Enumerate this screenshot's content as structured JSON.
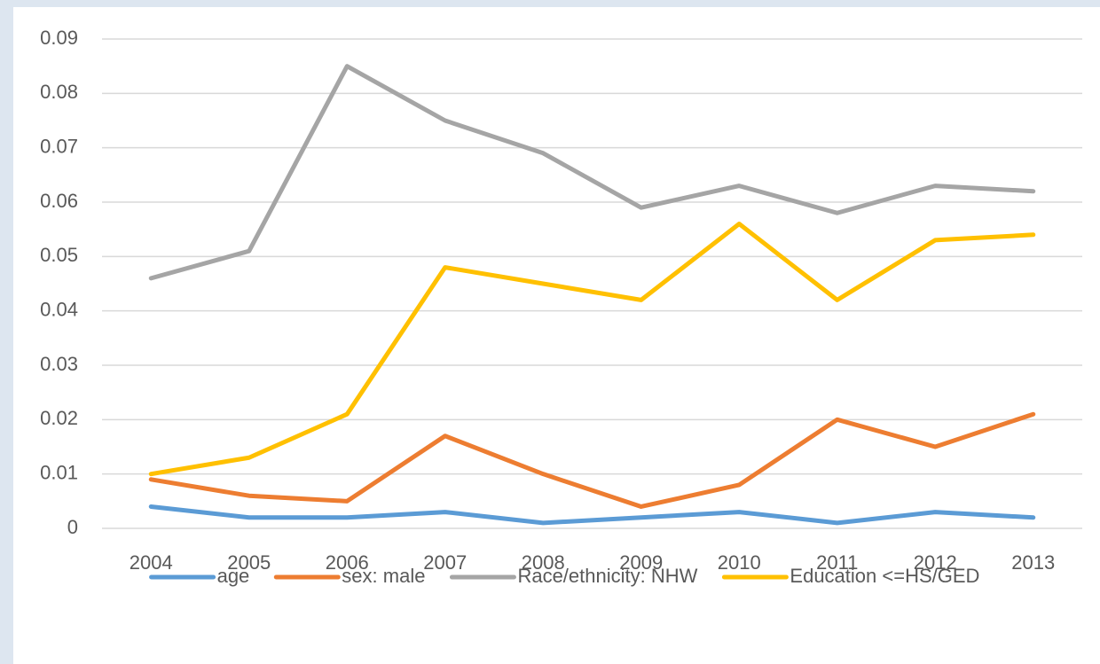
{
  "chart_data": {
    "type": "line",
    "categories": [
      "2004",
      "2005",
      "2006",
      "2007",
      "2008",
      "2009",
      "2010",
      "2011",
      "2012",
      "2013"
    ],
    "series": [
      {
        "name": "age",
        "color": "#5b9bd5",
        "values": [
          0.004,
          0.002,
          0.002,
          0.003,
          0.001,
          0.002,
          0.003,
          0.001,
          0.003,
          0.002
        ]
      },
      {
        "name": "sex: male",
        "color": "#ed7d31",
        "values": [
          0.009,
          0.006,
          0.005,
          0.017,
          0.01,
          0.004,
          0.008,
          0.02,
          0.015,
          0.021
        ]
      },
      {
        "name": "Race/ethnicity: NHW",
        "color": "#a5a5a5",
        "values": [
          0.046,
          0.051,
          0.085,
          0.075,
          0.069,
          0.059,
          0.063,
          0.058,
          0.063,
          0.062
        ]
      },
      {
        "name": "Education <=HS/GED",
        "color": "#ffc000",
        "values": [
          0.01,
          0.013,
          0.021,
          0.048,
          0.045,
          0.042,
          0.056,
          0.042,
          0.053,
          0.054
        ]
      }
    ],
    "ylim": [
      0,
      0.09
    ],
    "yticks": [
      0,
      0.01,
      0.02,
      0.03,
      0.04,
      0.05,
      0.06,
      0.07,
      0.08,
      0.09
    ],
    "grid": true,
    "legend": "bottom"
  }
}
